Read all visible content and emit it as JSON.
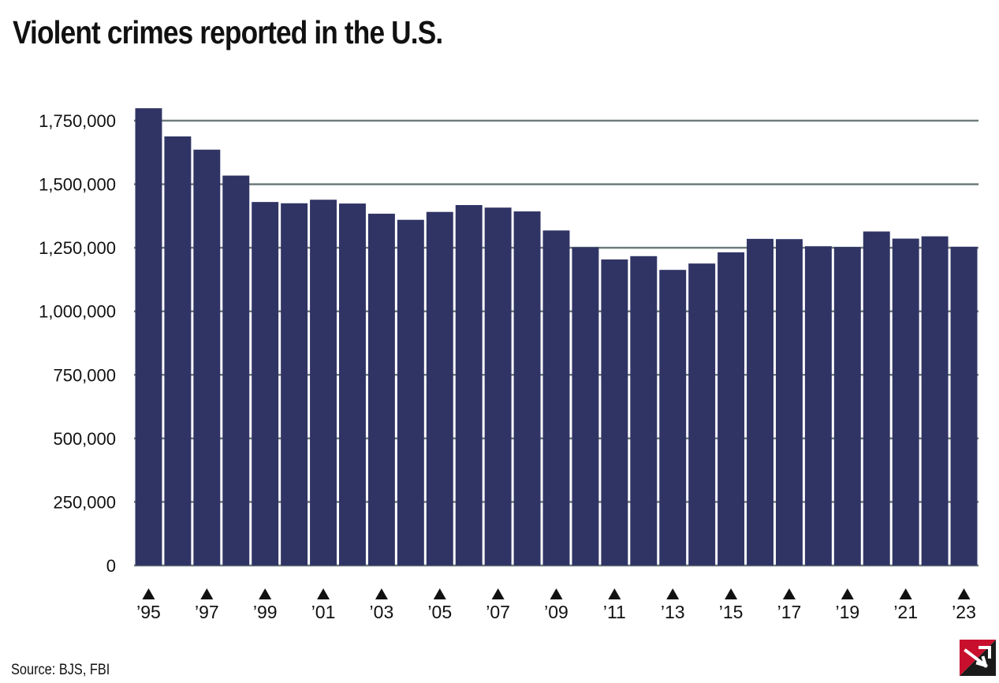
{
  "chart_data": {
    "type": "bar",
    "title": "Violent crimes reported in the U.S.",
    "source": "Source: BJS, FBI",
    "categories": [
      "1995",
      "1996",
      "1997",
      "1998",
      "1999",
      "2000",
      "2001",
      "2002",
      "2003",
      "2004",
      "2005",
      "2006",
      "2007",
      "2008",
      "2009",
      "2010",
      "2011",
      "2012",
      "2013",
      "2014",
      "2015",
      "2016",
      "2017",
      "2018",
      "2019",
      "2020",
      "2021",
      "2022",
      "2023"
    ],
    "x_tick_labels": [
      "’95",
      "’97",
      "’99",
      "’01",
      "’03",
      "’05",
      "’07",
      "’09",
      "’11",
      "’13",
      "’15",
      "’17",
      "’19",
      "’21",
      "’23"
    ],
    "values": [
      1799000,
      1688000,
      1636000,
      1534000,
      1430000,
      1425000,
      1439000,
      1424000,
      1384000,
      1360000,
      1391000,
      1418000,
      1408000,
      1393000,
      1318000,
      1252000,
      1204000,
      1217000,
      1163000,
      1188000,
      1232000,
      1285000,
      1284000,
      1256000,
      1253000,
      1314000,
      1286000,
      1295000,
      1254000
    ],
    "y_ticks": [
      0,
      250000,
      500000,
      750000,
      1000000,
      1250000,
      1500000,
      1750000
    ],
    "y_tick_labels": [
      "0",
      "250,000",
      "500,000",
      "750,000",
      "1,000,000",
      "1,250,000",
      "1,500,000",
      "1,750,000"
    ],
    "ylim": [
      0,
      1800000
    ],
    "xlabel": "",
    "ylabel": "",
    "grid": true,
    "colors": {
      "bar": "#303465",
      "grid": "#6e7b7c",
      "text": "#111111"
    }
  },
  "logo": {
    "colors": {
      "red": "#c8102e",
      "dark": "#1a1a1a"
    }
  }
}
